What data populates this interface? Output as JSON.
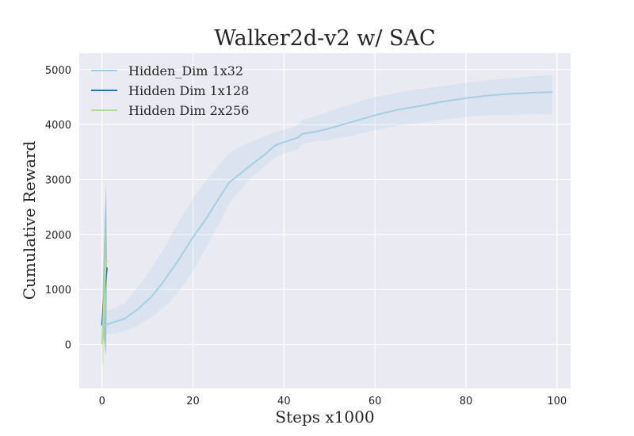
{
  "chart_data": {
    "type": "line",
    "title": "Walker2d-v2 w/ SAC",
    "xlabel": "Steps x1000",
    "ylabel": "Cumulative Reward",
    "xlim": [
      -5,
      103
    ],
    "ylim": [
      -800,
      5300
    ],
    "xticks": [
      0,
      20,
      40,
      60,
      80,
      100
    ],
    "yticks": [
      0,
      1000,
      2000,
      3000,
      4000,
      5000
    ],
    "grid": true,
    "legend_position": "top-left",
    "background": "#e9eaf2",
    "series": [
      {
        "name": "Hidden_Dim 1x32",
        "color": "#a6cee3",
        "band_color": "#a6cee3",
        "x": [
          0,
          2,
          5,
          8,
          11,
          14,
          17,
          20,
          23,
          26,
          28,
          30,
          33,
          36,
          38,
          40,
          43,
          44,
          47,
          50,
          55,
          60,
          65,
          70,
          75,
          80,
          85,
          90,
          95,
          99
        ],
        "y": [
          330,
          390,
          470,
          650,
          880,
          1200,
          1560,
          1950,
          2300,
          2700,
          2950,
          3080,
          3280,
          3470,
          3620,
          3680,
          3760,
          3830,
          3870,
          3930,
          4050,
          4170,
          4270,
          4340,
          4420,
          4480,
          4530,
          4560,
          4580,
          4590
        ],
        "upper": [
          600,
          630,
          750,
          1050,
          1400,
          1800,
          2250,
          2650,
          3000,
          3300,
          3480,
          3580,
          3700,
          3790,
          3860,
          3900,
          3980,
          4080,
          4150,
          4250,
          4380,
          4500,
          4580,
          4650,
          4700,
          4760,
          4810,
          4850,
          4880,
          4900
        ],
        "lower": [
          170,
          190,
          240,
          360,
          500,
          700,
          980,
          1330,
          1780,
          2250,
          2570,
          2780,
          3050,
          3260,
          3400,
          3470,
          3540,
          3640,
          3700,
          3720,
          3800,
          3900,
          3980,
          4030,
          4090,
          4140,
          4170,
          4180,
          4190,
          4180
        ]
      },
      {
        "name": "Hidden Dim 1x128",
        "color": "#1f78b4",
        "band_color": "#1f78b4",
        "x": [
          0,
          0.3,
          0.6,
          0.9,
          1.1
        ],
        "y": [
          350,
          700,
          1000,
          1250,
          1400
        ],
        "upper": [
          500,
          1400,
          2300,
          2900,
          1600
        ],
        "lower": [
          200,
          100,
          0,
          -200,
          1200
        ]
      },
      {
        "name": "Hidden Dim 2x256",
        "color": "#b2df8a",
        "band_color": "#b2df8a",
        "x": [
          0,
          0.3,
          0.6,
          0.9,
          1.1
        ],
        "y": [
          0,
          500,
          1100,
          1550,
          1500
        ],
        "upper": [
          300,
          1000,
          1900,
          2600,
          1700
        ],
        "lower": [
          -300,
          -400,
          0,
          500,
          1300
        ]
      }
    ]
  }
}
